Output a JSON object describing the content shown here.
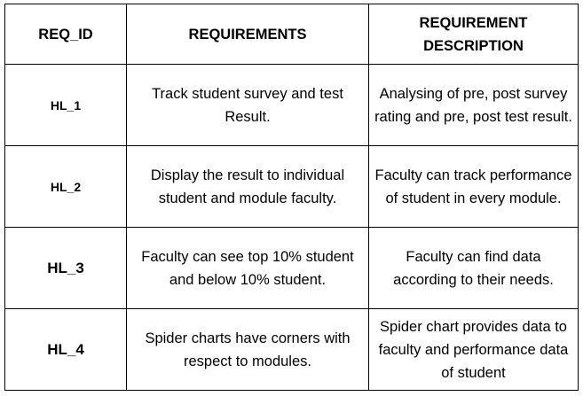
{
  "table": {
    "headers": [
      "REQ_ID",
      "REQUIREMENTS",
      "REQUIREMENT DESCRIPTION"
    ],
    "rows": [
      {
        "id": "HL_1",
        "requirement": "Track student survey and test Result.",
        "description": "Analysing of pre, post survey rating and pre, post test result."
      },
      {
        "id": "HL_2",
        "requirement": "Display the result to individual student and module faculty.",
        "description": "Faculty can track performance of student in every module."
      },
      {
        "id": "HL_3",
        "requirement": "Faculty can see top 10% student and below 10% student.",
        "description": "Faculty can find data according to their needs."
      },
      {
        "id": "HL_4",
        "requirement": "Spider charts have corners with respect to modules.",
        "description": "Spider chart provides data to faculty and performance data of student"
      }
    ]
  }
}
